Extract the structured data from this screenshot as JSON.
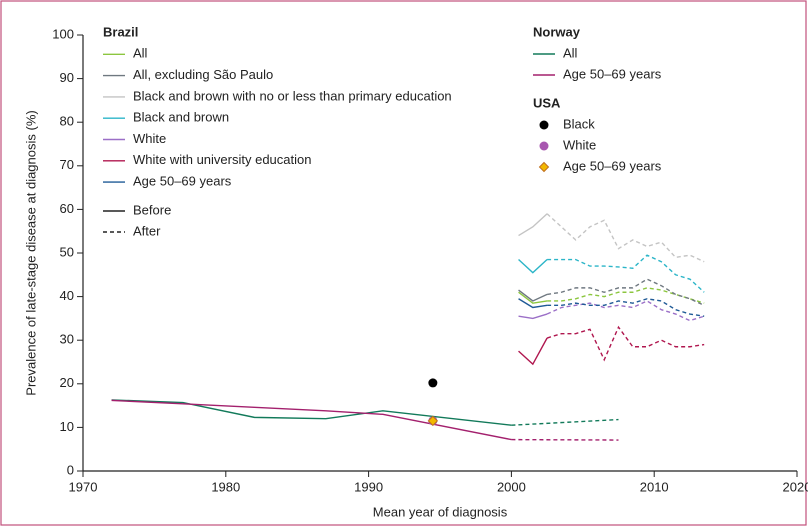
{
  "chart_data": {
    "type": "line",
    "xlabel": "Mean year of diagnosis",
    "ylabel": "Prevalence of late-stage disease at diagnosis (%)",
    "xlim": [
      1970,
      2020
    ],
    "xticks": [
      1970,
      1980,
      1990,
      2000,
      2010,
      2020
    ],
    "ylim": [
      0,
      100
    ],
    "yticks": [
      0,
      10,
      20,
      30,
      40,
      50,
      60,
      70,
      80,
      90,
      100
    ],
    "line_styles": [
      {
        "label": "Before",
        "dash": "solid"
      },
      {
        "label": "After",
        "dash": "dashed"
      }
    ],
    "groups": [
      {
        "title": "Brazil",
        "series": [
          {
            "name": "All",
            "color": "#8cc63f",
            "segments": [
              {
                "style": "solid",
                "x": [
                  2000.5,
                  2001.5,
                  2002.5
                ],
                "values": [
                  41,
                  38.5,
                  39
                ]
              },
              {
                "style": "dashed",
                "x": [
                  2002.5,
                  2003.5,
                  2004.5,
                  2005.5,
                  2006.5,
                  2007.5,
                  2008.5,
                  2009.5,
                  2010.5,
                  2011.5,
                  2012.5,
                  2013.5
                ],
                "values": [
                  39,
                  39,
                  39.5,
                  40.5,
                  40,
                  41,
                  41,
                  42,
                  41.5,
                  40.5,
                  39.5,
                  38.5
                ]
              }
            ]
          },
          {
            "name": "All, excluding São Paulo",
            "color": "#6f7880",
            "segments": [
              {
                "style": "solid",
                "x": [
                  2000.5,
                  2001.5,
                  2002.5
                ],
                "values": [
                  41.5,
                  39,
                  40.5
                ]
              },
              {
                "style": "dashed",
                "x": [
                  2002.5,
                  2003.5,
                  2004.5,
                  2005.5,
                  2006.5,
                  2007.5,
                  2008.5,
                  2009.5,
                  2010.5,
                  2011.5,
                  2012.5,
                  2013.5
                ],
                "values": [
                  40.5,
                  41,
                  42,
                  42,
                  41,
                  42,
                  42,
                  44,
                  42.5,
                  40.5,
                  39.5,
                  38
                ]
              }
            ]
          },
          {
            "name": "Black and brown with no or less than primary education",
            "color": "#c4c4c4",
            "segments": [
              {
                "style": "solid",
                "x": [
                  2000.5,
                  2001.5,
                  2002.5
                ],
                "values": [
                  54,
                  56,
                  59
                ]
              },
              {
                "style": "dashed",
                "x": [
                  2002.5,
                  2003.5,
                  2004.5,
                  2005.5,
                  2006.5,
                  2007.5,
                  2008.5,
                  2009.5,
                  2010.5,
                  2011.5,
                  2012.5,
                  2013.5
                ],
                "values": [
                  59,
                  56,
                  53,
                  56,
                  57.5,
                  51,
                  53,
                  51.5,
                  52.5,
                  49,
                  49.5,
                  48
                ]
              }
            ]
          },
          {
            "name": "Black and brown",
            "color": "#2bb5c8",
            "segments": [
              {
                "style": "solid",
                "x": [
                  2000.5,
                  2001.5,
                  2002.5
                ],
                "values": [
                  48.5,
                  45.5,
                  48.5
                ]
              },
              {
                "style": "dashed",
                "x": [
                  2002.5,
                  2003.5,
                  2004.5,
                  2005.5,
                  2006.5,
                  2007.5,
                  2008.5,
                  2009.5,
                  2010.5,
                  2011.5,
                  2012.5,
                  2013.5
                ],
                "values": [
                  48.5,
                  48.5,
                  48.5,
                  47,
                  47,
                  46.8,
                  46.5,
                  49.5,
                  48,
                  45,
                  44,
                  41
                ]
              }
            ]
          },
          {
            "name": "White",
            "color": "#9b6fc7",
            "segments": [
              {
                "style": "solid",
                "x": [
                  2000.5,
                  2001.5,
                  2002.5
                ],
                "values": [
                  35.5,
                  35,
                  36
                ]
              },
              {
                "style": "dashed",
                "x": [
                  2002.5,
                  2003.5,
                  2004.5,
                  2005.5,
                  2006.5,
                  2007.5,
                  2008.5,
                  2009.5,
                  2010.5,
                  2011.5,
                  2012.5,
                  2013.5
                ],
                "values": [
                  36,
                  37.5,
                  38,
                  38.5,
                  37.5,
                  38,
                  37.5,
                  39,
                  37,
                  36,
                  34.5,
                  35.5
                ]
              }
            ]
          },
          {
            "name": "White with university education",
            "color": "#b0174f",
            "segments": [
              {
                "style": "solid",
                "x": [
                  2000.5,
                  2001.5,
                  2002.5
                ],
                "values": [
                  27.5,
                  24.5,
                  30.5
                ]
              },
              {
                "style": "dashed",
                "x": [
                  2002.5,
                  2003.5,
                  2004.5,
                  2005.5,
                  2006.5,
                  2007.5,
                  2008.5,
                  2009.5,
                  2010.5,
                  2011.5,
                  2012.5,
                  2013.5
                ],
                "values": [
                  30.5,
                  31.5,
                  31.5,
                  32.5,
                  25.5,
                  33,
                  28.5,
                  28.5,
                  30,
                  28.5,
                  28.5,
                  29
                ]
              }
            ]
          },
          {
            "name": "Age 50–69 years",
            "color": "#1f5a96",
            "segments": [
              {
                "style": "solid",
                "x": [
                  2000.5,
                  2001.5,
                  2002.5
                ],
                "values": [
                  39.5,
                  37.5,
                  38
                ]
              },
              {
                "style": "dashed",
                "x": [
                  2002.5,
                  2003.5,
                  2004.5,
                  2005.5,
                  2006.5,
                  2007.5,
                  2008.5,
                  2009.5,
                  2010.5,
                  2011.5,
                  2012.5,
                  2013.5
                ],
                "values": [
                  38,
                  38,
                  38.5,
                  38,
                  38,
                  39,
                  38.5,
                  39.5,
                  39,
                  37,
                  36,
                  35.5
                ]
              }
            ]
          }
        ]
      },
      {
        "title": "Norway",
        "series": [
          {
            "name": "All",
            "color": "#127a5a",
            "segments": [
              {
                "style": "solid",
                "x": [
                  1972,
                  1977,
                  1982,
                  1987,
                  1991,
                  2000
                ],
                "values": [
                  16.3,
                  15.7,
                  12.3,
                  12,
                  13.8,
                  10.5
                ]
              },
              {
                "style": "dashed",
                "x": [
                  2000,
                  2007.5
                ],
                "values": [
                  10.5,
                  11.8
                ]
              }
            ]
          },
          {
            "name": "Age 50–69 years",
            "color": "#a3206d",
            "segments": [
              {
                "style": "solid",
                "x": [
                  1972,
                  1977,
                  1982,
                  1987,
                  1991,
                  2000
                ],
                "values": [
                  16.2,
                  15.4,
                  14.6,
                  13.8,
                  13,
                  7.2
                ]
              },
              {
                "style": "dashed",
                "x": [
                  2000,
                  2007.5
                ],
                "values": [
                  7.2,
                  7.1
                ]
              }
            ]
          }
        ]
      },
      {
        "title": "USA",
        "series": [
          {
            "name": "Black",
            "color": "#000000",
            "marker": "circle",
            "x": [
              1994.5
            ],
            "values": [
              20.2
            ]
          },
          {
            "name": "White",
            "color": "#a857b0",
            "marker": "circle",
            "x": [
              1994.5
            ],
            "values": [
              11.5
            ]
          },
          {
            "name": "Age 50–69 years",
            "color": "#f2b800",
            "marker": "diamond",
            "x": [
              1994.5
            ],
            "values": [
              11.5
            ]
          }
        ]
      }
    ]
  }
}
